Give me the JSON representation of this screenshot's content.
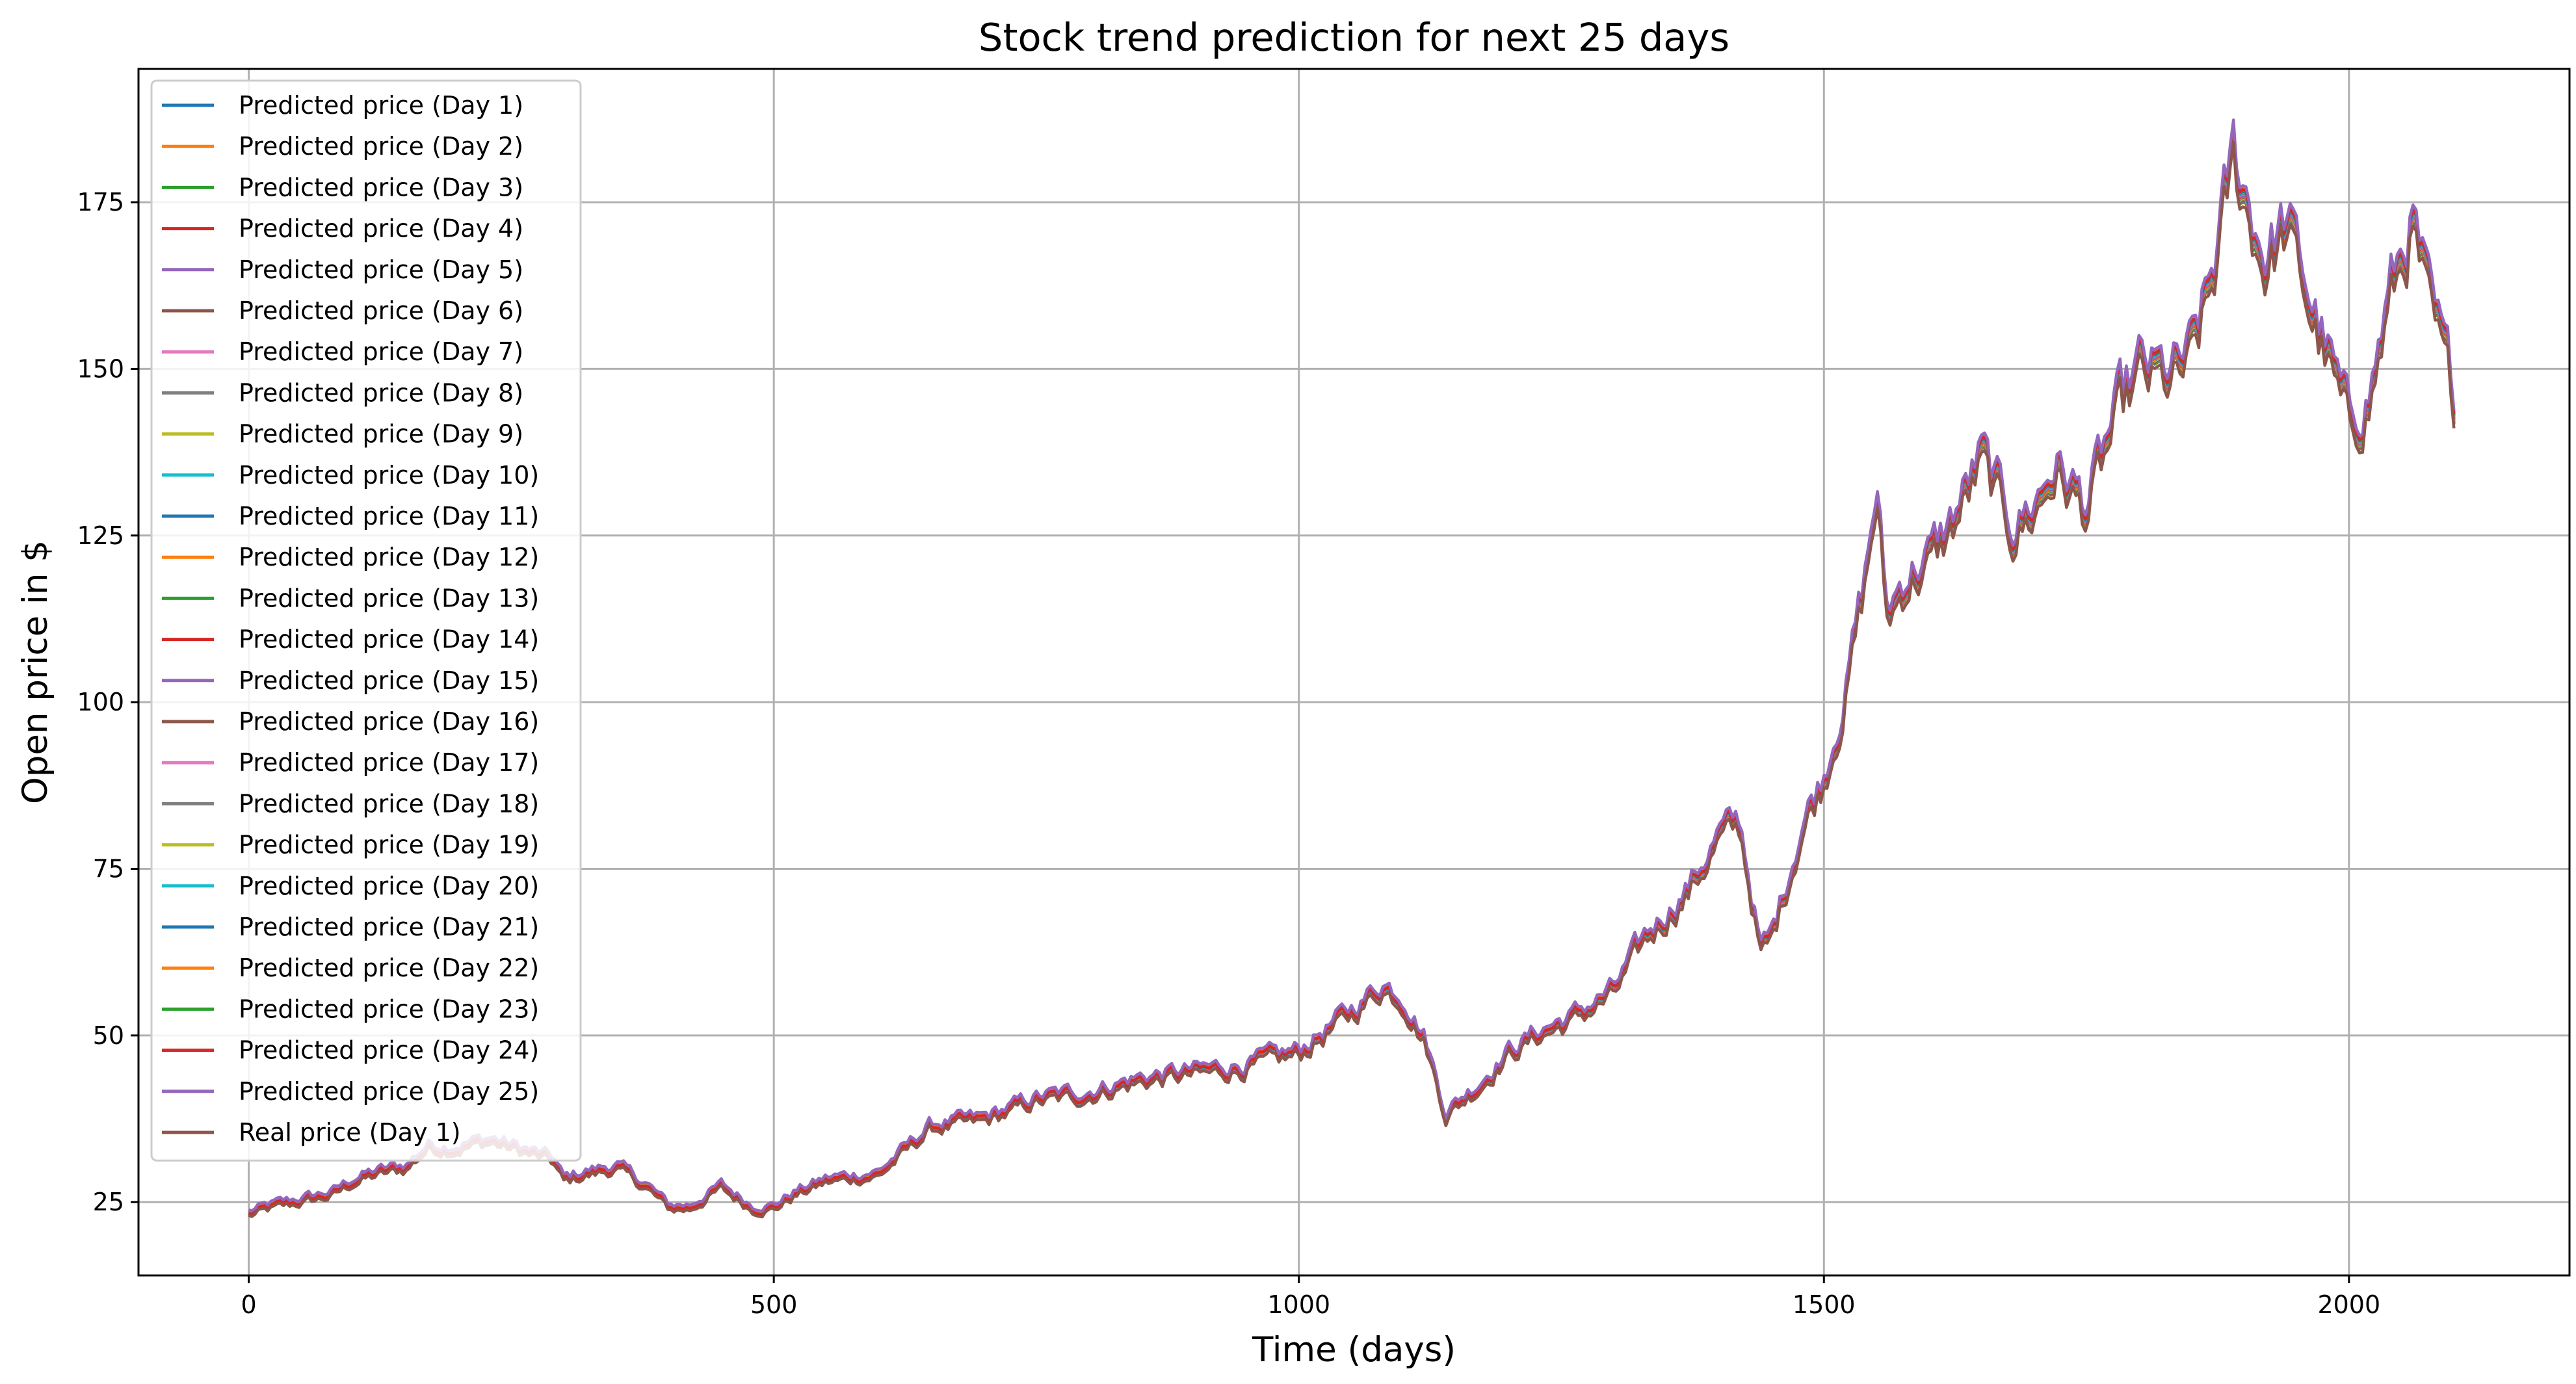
{
  "chart_data": {
    "type": "line",
    "title": "Stock trend prediction for next 25 days",
    "xlabel": "Time (days)",
    "ylabel": "Open price in $",
    "xlim": [
      -105,
      2210
    ],
    "ylim": [
      14,
      195
    ],
    "xticks": [
      0,
      500,
      1000,
      1500,
      2000
    ],
    "yticks": [
      25,
      50,
      75,
      100,
      125,
      150,
      175
    ],
    "grid": true,
    "legend_position": "upper-left",
    "series": [
      {
        "name": "Predicted price (Day 1)",
        "color": "#1f77b4"
      },
      {
        "name": "Predicted price (Day 2)",
        "color": "#ff7f0e"
      },
      {
        "name": "Predicted price (Day 3)",
        "color": "#2ca02c"
      },
      {
        "name": "Predicted price (Day 4)",
        "color": "#d62728"
      },
      {
        "name": "Predicted price (Day 5)",
        "color": "#9467bd"
      },
      {
        "name": "Predicted price (Day 6)",
        "color": "#8c564b"
      },
      {
        "name": "Predicted price (Day 7)",
        "color": "#e377c2"
      },
      {
        "name": "Predicted price (Day 8)",
        "color": "#7f7f7f"
      },
      {
        "name": "Predicted price (Day 9)",
        "color": "#bcbd22"
      },
      {
        "name": "Predicted price (Day 10)",
        "color": "#17becf"
      },
      {
        "name": "Predicted price (Day 11)",
        "color": "#1f77b4"
      },
      {
        "name": "Predicted price (Day 12)",
        "color": "#ff7f0e"
      },
      {
        "name": "Predicted price (Day 13)",
        "color": "#2ca02c"
      },
      {
        "name": "Predicted price (Day 14)",
        "color": "#d62728"
      },
      {
        "name": "Predicted price (Day 15)",
        "color": "#9467bd"
      },
      {
        "name": "Predicted price (Day 16)",
        "color": "#8c564b"
      },
      {
        "name": "Predicted price (Day 17)",
        "color": "#e377c2"
      },
      {
        "name": "Predicted price (Day 18)",
        "color": "#7f7f7f"
      },
      {
        "name": "Predicted price (Day 19)",
        "color": "#bcbd22"
      },
      {
        "name": "Predicted price (Day 20)",
        "color": "#17becf"
      },
      {
        "name": "Predicted price (Day 21)",
        "color": "#1f77b4"
      },
      {
        "name": "Predicted price (Day 22)",
        "color": "#ff7f0e"
      },
      {
        "name": "Predicted price (Day 23)",
        "color": "#2ca02c"
      },
      {
        "name": "Predicted price (Day 24)",
        "color": "#d62728"
      },
      {
        "name": "Predicted price (Day 25)",
        "color": "#9467bd"
      },
      {
        "name": "Real price (Day 1)",
        "color": "#8c564b"
      }
    ],
    "trend": {
      "x": [
        0,
        20,
        50,
        80,
        100,
        120,
        150,
        170,
        200,
        230,
        250,
        270,
        290,
        300,
        320,
        350,
        380,
        400,
        420,
        450,
        480,
        500,
        520,
        550,
        600,
        650,
        700,
        750,
        800,
        850,
        900,
        950,
        1000,
        1050,
        1080,
        1100,
        1120,
        1140,
        1170,
        1200,
        1230,
        1260,
        1300,
        1330,
        1370,
        1400,
        1420,
        1440,
        1450,
        1480,
        1500,
        1520,
        1540,
        1550,
        1560,
        1580,
        1600,
        1620,
        1650,
        1680,
        1700,
        1720,
        1750,
        1780,
        1800,
        1830,
        1850,
        1870,
        1890,
        1900,
        1920,
        1940,
        1960,
        1980,
        2000,
        2020,
        2040,
        2060,
        2080,
        2100
      ],
      "y": [
        23,
        24,
        25,
        26,
        28,
        29,
        30,
        33,
        33,
        34,
        33,
        32,
        31,
        28,
        29,
        30,
        27,
        24,
        24,
        27,
        24,
        24,
        26,
        28,
        29,
        36,
        37,
        40,
        41,
        43,
        44,
        45,
        47,
        53,
        57,
        55,
        49,
        38,
        42,
        47,
        50,
        52,
        56,
        64,
        71,
        79,
        81,
        62,
        64,
        81,
        88,
        100,
        118,
        130,
        112,
        118,
        120,
        125,
        135,
        125,
        128,
        134,
        128,
        142,
        148,
        147,
        150,
        162,
        180,
        175,
        165,
        170,
        160,
        150,
        140,
        145,
        160,
        170,
        155,
        145
      ]
    }
  }
}
